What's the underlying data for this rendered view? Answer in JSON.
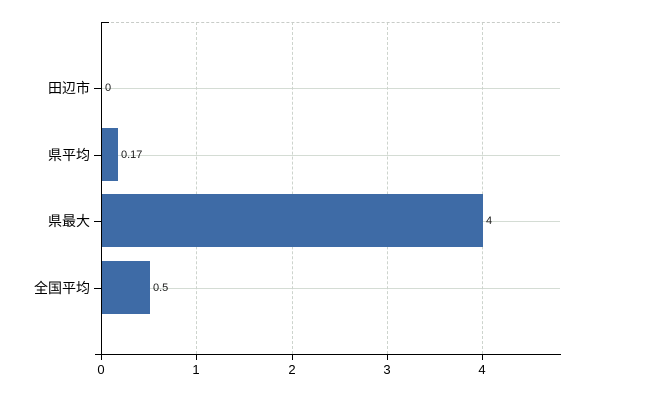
{
  "chart_data": {
    "type": "bar",
    "orientation": "horizontal",
    "title": "",
    "xlabel": "",
    "ylabel": "",
    "categories": [
      "田辺市",
      "県平均",
      "県最大",
      "全国平均"
    ],
    "values": [
      0,
      0.17,
      4,
      0.5
    ],
    "value_labels": [
      "0",
      "0.17",
      "4",
      "0.5"
    ],
    "xlim": [
      0,
      4.8
    ],
    "xticks": [
      0,
      1,
      2,
      3,
      4
    ],
    "xtick_labels": [
      "0",
      "1",
      "2",
      "3",
      "4"
    ],
    "grid": true,
    "legend_position": "none",
    "colors": {
      "bar": "#3e6ba6",
      "hgrid": "#d4dcd4",
      "vgrid_dashed": "#cdd4cd",
      "top_border_dashed": "#c8ccc8",
      "axis": "#000000",
      "value_label_text": "#1c1c1c",
      "background": "#ffffff"
    }
  }
}
